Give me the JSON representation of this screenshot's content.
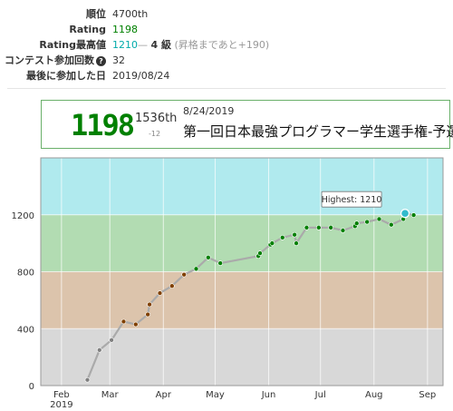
{
  "stats": [
    {
      "label": "順位",
      "value": "4700th"
    },
    {
      "label": "Rating",
      "value": "1198"
    },
    {
      "label": "Rating最高値",
      "value": "1210",
      "dash": "—",
      "kyu": "4 級",
      "note": "(昇格まであと+190)"
    },
    {
      "label": "コンテスト参加回数",
      "value": "32"
    },
    {
      "label": "最後に参加した日",
      "value": "2019/08/24"
    }
  ],
  "highlight": {
    "rating": "1198",
    "rank": "1536th",
    "delta": "-12",
    "date": "8/24/2019",
    "contest": "第一回日本最強プログラマー学生選手権-予選-"
  },
  "chart_data": {
    "type": "line",
    "ylim": [
      0,
      1600
    ],
    "yticks": [
      0,
      400,
      800,
      1200
    ],
    "xlim": [
      "2019-01-20",
      "2019-09-10"
    ],
    "xticks": [
      {
        "date": "2019-02-01",
        "label": "Feb",
        "sub": "2019"
      },
      {
        "date": "2019-03-01",
        "label": "Mar"
      },
      {
        "date": "2019-04-01",
        "label": "Apr"
      },
      {
        "date": "2019-05-01",
        "label": "May"
      },
      {
        "date": "2019-06-01",
        "label": "Jun"
      },
      {
        "date": "2019-07-01",
        "label": "Jul"
      },
      {
        "date": "2019-08-01",
        "label": "Aug"
      },
      {
        "date": "2019-09-01",
        "label": "Sep"
      }
    ],
    "bands": [
      {
        "from": 0,
        "to": 400,
        "color": "#d8d8d8"
      },
      {
        "from": 400,
        "to": 800,
        "color": "#dcc4ac"
      },
      {
        "from": 800,
        "to": 1200,
        "color": "#b2dcb2"
      },
      {
        "from": 1200,
        "to": 1600,
        "color": "#b0eaee"
      }
    ],
    "points": [
      {
        "date": "2019-02-16",
        "value": 40
      },
      {
        "date": "2019-02-23",
        "value": 250
      },
      {
        "date": "2019-03-02",
        "value": 320
      },
      {
        "date": "2019-03-09",
        "value": 450
      },
      {
        "date": "2019-03-16",
        "value": 430
      },
      {
        "date": "2019-03-23",
        "value": 500
      },
      {
        "date": "2019-03-24",
        "value": 570
      },
      {
        "date": "2019-03-30",
        "value": 650
      },
      {
        "date": "2019-04-06",
        "value": 700
      },
      {
        "date": "2019-04-13",
        "value": 780
      },
      {
        "date": "2019-04-20",
        "value": 820
      },
      {
        "date": "2019-04-27",
        "value": 900
      },
      {
        "date": "2019-05-04",
        "value": 860
      },
      {
        "date": "2019-05-26",
        "value": 910
      },
      {
        "date": "2019-05-27",
        "value": 930
      },
      {
        "date": "2019-06-02",
        "value": 990
      },
      {
        "date": "2019-06-03",
        "value": 1000
      },
      {
        "date": "2019-06-09",
        "value": 1040
      },
      {
        "date": "2019-06-16",
        "value": 1060
      },
      {
        "date": "2019-06-17",
        "value": 1000
      },
      {
        "date": "2019-06-23",
        "value": 1110
      },
      {
        "date": "2019-06-30",
        "value": 1110
      },
      {
        "date": "2019-07-07",
        "value": 1110
      },
      {
        "date": "2019-07-14",
        "value": 1090
      },
      {
        "date": "2019-07-21",
        "value": 1120
      },
      {
        "date": "2019-07-22",
        "value": 1140
      },
      {
        "date": "2019-07-28",
        "value": 1150
      },
      {
        "date": "2019-08-04",
        "value": 1170
      },
      {
        "date": "2019-08-11",
        "value": 1130
      },
      {
        "date": "2019-08-18",
        "value": 1170
      },
      {
        "date": "2019-08-19",
        "value": 1210
      },
      {
        "date": "2019-08-24",
        "value": 1198
      }
    ],
    "highest": {
      "date": "2019-08-19",
      "value": 1210,
      "label": "Highest: 1210"
    }
  }
}
